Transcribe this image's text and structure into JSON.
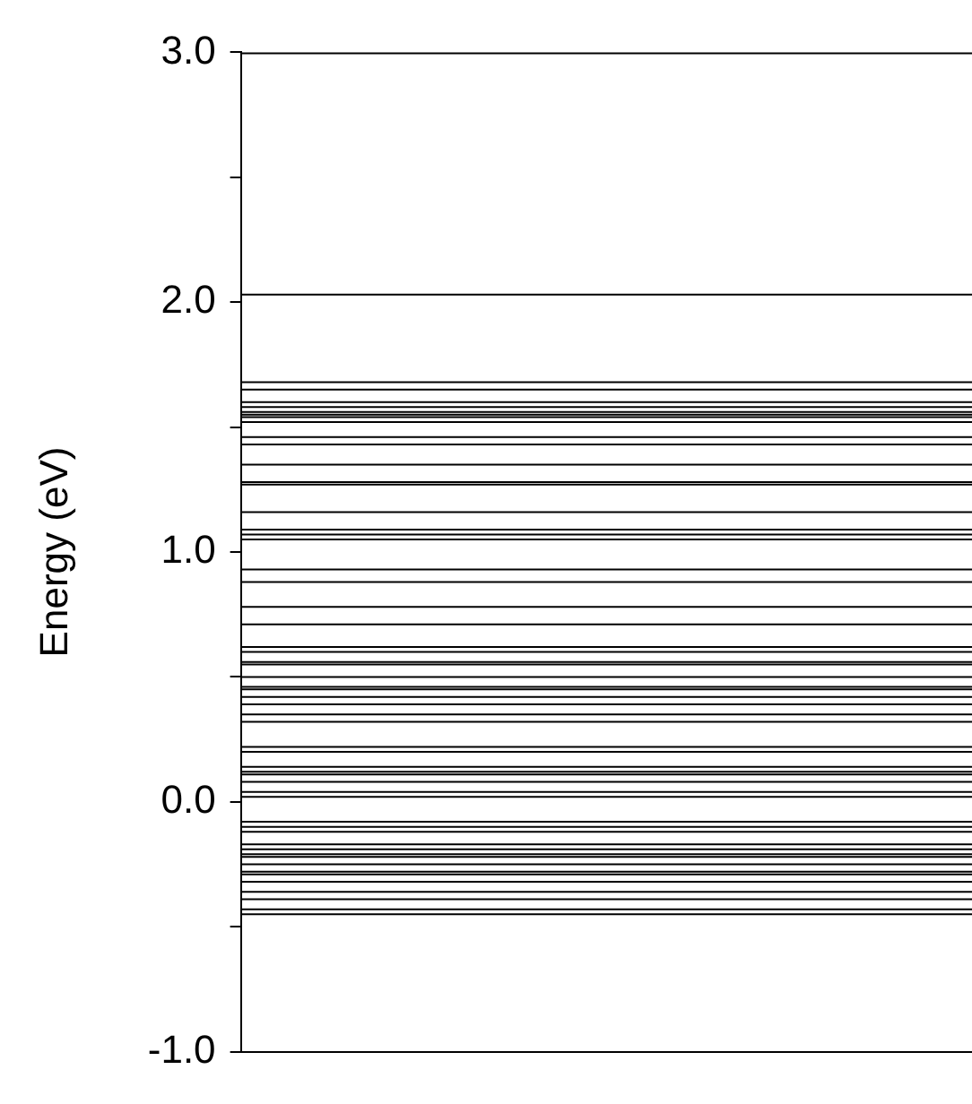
{
  "chart_data": {
    "type": "line",
    "ylabel": "Energy (eV)",
    "categories": [
      null,
      null
    ],
    "ylim": [
      -1,
      3
    ],
    "yticks": [
      {
        "value": -1,
        "label": "-1.0"
      },
      {
        "value": -0.5,
        "label": null
      },
      {
        "value": 0,
        "label": "0.0"
      },
      {
        "value": 0.5,
        "label": null
      },
      {
        "value": 1,
        "label": "1.0"
      },
      {
        "value": 1.5,
        "label": null
      },
      {
        "value": 2,
        "label": "2.0"
      },
      {
        "value": 2.5,
        "label": null
      },
      {
        "value": 3,
        "label": "3.0"
      }
    ],
    "tick_labels": "y",
    "grid": false,
    "legend": false,
    "ref_lines": [
      {
        "axis": "y",
        "value": 2.03
      },
      {
        "axis": "y",
        "value": 1.68
      },
      {
        "axis": "y",
        "value": 1.65
      },
      {
        "axis": "y",
        "value": 1.6
      },
      {
        "axis": "y",
        "value": 1.58
      },
      {
        "axis": "y",
        "value": 1.56
      },
      {
        "axis": "y",
        "value": 1.55
      },
      {
        "axis": "y",
        "value": 1.54
      },
      {
        "axis": "y",
        "value": 1.52
      },
      {
        "axis": "y",
        "value": 1.46
      },
      {
        "axis": "y",
        "value": 1.43
      },
      {
        "axis": "y",
        "value": 1.35
      },
      {
        "axis": "y",
        "value": 1.28
      },
      {
        "axis": "y",
        "value": 1.27
      },
      {
        "axis": "y",
        "value": 1.16
      },
      {
        "axis": "y",
        "value": 1.09
      },
      {
        "axis": "y",
        "value": 1.07
      },
      {
        "axis": "y",
        "value": 1.05
      },
      {
        "axis": "y",
        "value": 0.93
      },
      {
        "axis": "y",
        "value": 0.88
      },
      {
        "axis": "y",
        "value": 0.78
      },
      {
        "axis": "y",
        "value": 0.71
      },
      {
        "axis": "y",
        "value": 0.62
      },
      {
        "axis": "y",
        "value": 0.6
      },
      {
        "axis": "y",
        "value": 0.56
      },
      {
        "axis": "y",
        "value": 0.55
      },
      {
        "axis": "y",
        "value": 0.5
      },
      {
        "axis": "y",
        "value": 0.46
      },
      {
        "axis": "y",
        "value": 0.45
      },
      {
        "axis": "y",
        "value": 0.42
      },
      {
        "axis": "y",
        "value": 0.39
      },
      {
        "axis": "y",
        "value": 0.35
      },
      {
        "axis": "y",
        "value": 0.32
      },
      {
        "axis": "y",
        "value": 0.22
      },
      {
        "axis": "y",
        "value": 0.2
      },
      {
        "axis": "y",
        "value": 0.14
      },
      {
        "axis": "y",
        "value": 0.12
      },
      {
        "axis": "y",
        "value": 0.11
      },
      {
        "axis": "y",
        "value": 0.08
      },
      {
        "axis": "y",
        "value": 0.04
      },
      {
        "axis": "y",
        "value": 0.02
      },
      {
        "axis": "y",
        "value": -0.08
      },
      {
        "axis": "y",
        "value": -0.1
      },
      {
        "axis": "y",
        "value": -0.12
      },
      {
        "axis": "y",
        "value": -0.17
      },
      {
        "axis": "y",
        "value": -0.19
      },
      {
        "axis": "y",
        "value": -0.21
      },
      {
        "axis": "y",
        "value": -0.22
      },
      {
        "axis": "y",
        "value": -0.25
      },
      {
        "axis": "y",
        "value": -0.28
      },
      {
        "axis": "y",
        "value": -0.29
      },
      {
        "axis": "y",
        "value": -0.32
      },
      {
        "axis": "y",
        "value": -0.36
      },
      {
        "axis": "y",
        "value": -0.39
      },
      {
        "axis": "y",
        "value": -0.43
      },
      {
        "axis": "y",
        "value": -0.45
      }
    ]
  }
}
